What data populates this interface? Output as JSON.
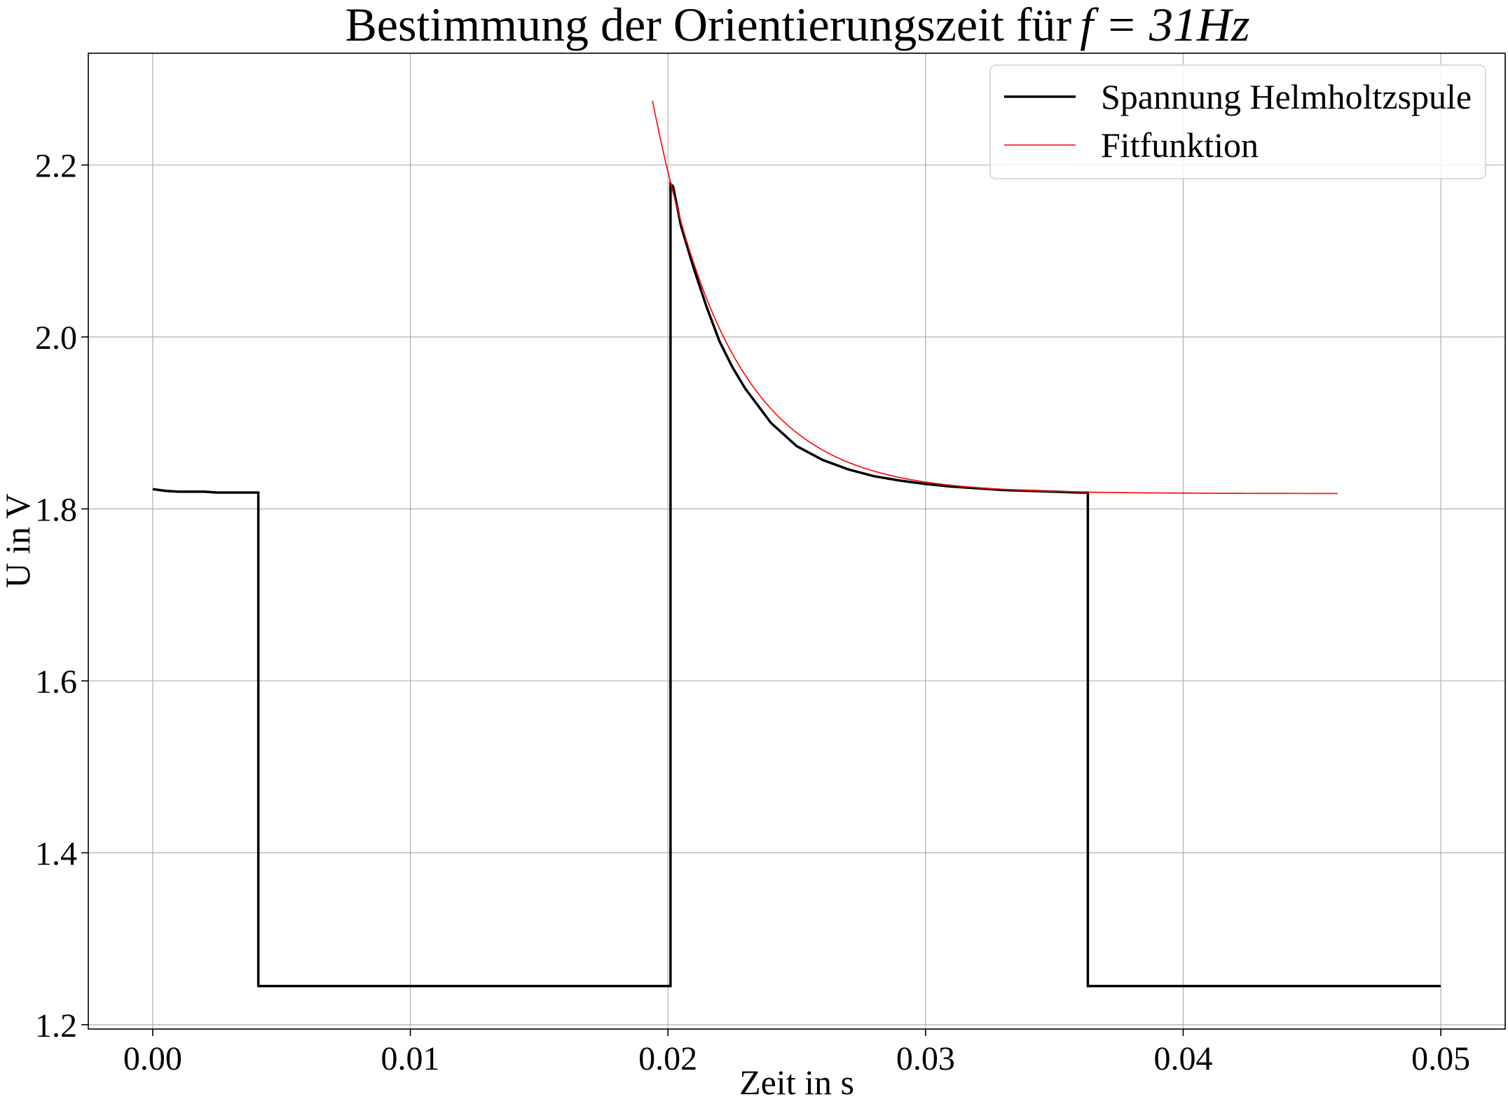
{
  "chart_data": {
    "type": "line",
    "title": "Bestimmung der Orientierungszeit für",
    "title_math": "f = 31Hz",
    "xlabel": "Zeit in s",
    "ylabel": "U in V",
    "xlim": [
      -0.0025,
      0.0525
    ],
    "ylim": [
      1.195,
      2.33
    ],
    "xticks": [
      "0.00",
      "0.01",
      "0.02",
      "0.03",
      "0.04",
      "0.05"
    ],
    "xtick_values": [
      0.0,
      0.01,
      0.02,
      0.03,
      0.04,
      0.05
    ],
    "yticks": [
      "1.2",
      "1.4",
      "1.6",
      "1.8",
      "2.0",
      "2.2"
    ],
    "ytick_values": [
      1.2,
      1.4,
      1.6,
      1.8,
      2.0,
      2.2
    ],
    "grid": true,
    "legend_position": "top-right",
    "series": [
      {
        "name": "Spannung Helmholtzspule",
        "color": "#000000",
        "x": [
          0.0,
          0.0005,
          0.001,
          0.0015,
          0.002,
          0.0025,
          0.003,
          0.0035,
          0.004,
          0.0041,
          0.0041,
          0.01,
          0.015,
          0.0201,
          0.0201,
          0.0202,
          0.0203,
          0.0205,
          0.021,
          0.0215,
          0.022,
          0.0225,
          0.023,
          0.024,
          0.025,
          0.026,
          0.027,
          0.028,
          0.029,
          0.03,
          0.031,
          0.032,
          0.033,
          0.034,
          0.035,
          0.036,
          0.0363,
          0.0363,
          0.04,
          0.045,
          0.05
        ],
        "y": [
          1.823,
          1.821,
          1.82,
          1.82,
          1.82,
          1.819,
          1.819,
          1.819,
          1.819,
          1.819,
          1.245,
          1.245,
          1.245,
          1.245,
          2.178,
          2.175,
          2.16,
          2.13,
          2.08,
          2.035,
          1.995,
          1.965,
          1.94,
          1.9,
          1.873,
          1.857,
          1.846,
          1.838,
          1.833,
          1.829,
          1.826,
          1.824,
          1.822,
          1.821,
          1.82,
          1.819,
          1.819,
          1.245,
          1.245,
          1.245,
          1.245
        ]
      },
      {
        "name": "Fitfunktion",
        "color": "#ff0000",
        "fit_amplitude": 0.35,
        "fit_offset": 1.8179,
        "fit_t0": 0.0202,
        "fit_tau": 0.003,
        "x_range": [
          0.0194,
          0.046
        ]
      }
    ]
  }
}
